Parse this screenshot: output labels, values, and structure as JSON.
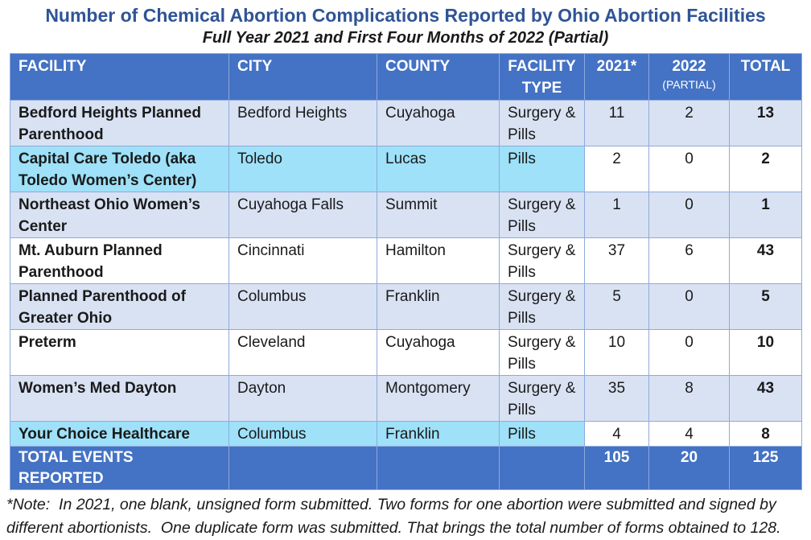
{
  "title": "Number of Chemical Abortion Complications Reported by Ohio Abortion Facilities",
  "subtitle": "Full Year 2021 and First Four Months of 2022 (Partial)",
  "table": {
    "headers": {
      "facility": "FACILITY",
      "city": "CITY",
      "county": "COUNTY",
      "type": "FACILITY TYPE",
      "y2021": "2021*",
      "y2022": "2022",
      "y2022_sub": "(PARTIAL)",
      "total": "TOTAL"
    },
    "rows": [
      {
        "facility": "Bedford Heights Planned Parenthood",
        "city": "Bedford Heights",
        "county": "Cuyahoga",
        "type": "Surgery & Pills",
        "y2021": "11",
        "y2022": "2",
        "total": "13",
        "highlight": false,
        "lines": 2
      },
      {
        "facility": "Capital Care Toledo (aka Toledo Women’s Center)",
        "city": "Toledo",
        "county": "Lucas",
        "type": "Pills",
        "y2021": "2",
        "y2022": "0",
        "total": "2",
        "highlight": true,
        "lines": 2
      },
      {
        "facility": "Northeast Ohio Women’s Center",
        "city": "Cuyahoga Falls",
        "county": "Summit",
        "type": "Surgery & Pills",
        "y2021": "1",
        "y2022": "0",
        "total": "1",
        "highlight": false,
        "lines": 2
      },
      {
        "facility": "Mt. Auburn Planned Parenthood",
        "city": "Cincinnati",
        "county": "Hamilton",
        "type": "Surgery & Pills",
        "y2021": "37",
        "y2022": "6",
        "total": "43",
        "highlight": false,
        "lines": 2
      },
      {
        "facility": "Planned Parenthood of Greater Ohio",
        "city": "Columbus",
        "county": "Franklin",
        "type": "Surgery & Pills",
        "y2021": "5",
        "y2022": "0",
        "total": "5",
        "highlight": false,
        "lines": 2
      },
      {
        "facility": "Preterm",
        "city": "Cleveland",
        "county": "Cuyahoga",
        "type": "Surgery & Pills",
        "y2021": "10",
        "y2022": "0",
        "total": "10",
        "highlight": false,
        "lines": 2
      },
      {
        "facility": "Women’s Med Dayton",
        "city": "Dayton",
        "county": "Montgomery",
        "type": "Surgery & Pills",
        "y2021": "35",
        "y2022": "8",
        "total": "43",
        "highlight": false,
        "lines": 2
      },
      {
        "facility": "Your Choice Healthcare",
        "city": "Columbus",
        "county": "Franklin",
        "type": "Pills",
        "y2021": "4",
        "y2022": "4",
        "total": "8",
        "highlight": true,
        "lines": 1
      }
    ],
    "total_row": {
      "label": "TOTAL EVENTS REPORTED",
      "y2021": "105",
      "y2022": "20",
      "total": "125"
    }
  },
  "footnote": "*Note:  In 2021, one blank, unsigned form submitted. Two forms for one abortion were submitted and signed by different abortionists.  One duplicate form was submitted. That brings the total number of forms obtained to 128.",
  "colors": {
    "header_blue": "#4472C4",
    "stripe_row": "#D9E2F3",
    "highlight_row": "#9EE1F9",
    "grid_border": "#8EAADC",
    "title_blue": "#2F5496",
    "header_text": "#ffffff"
  }
}
